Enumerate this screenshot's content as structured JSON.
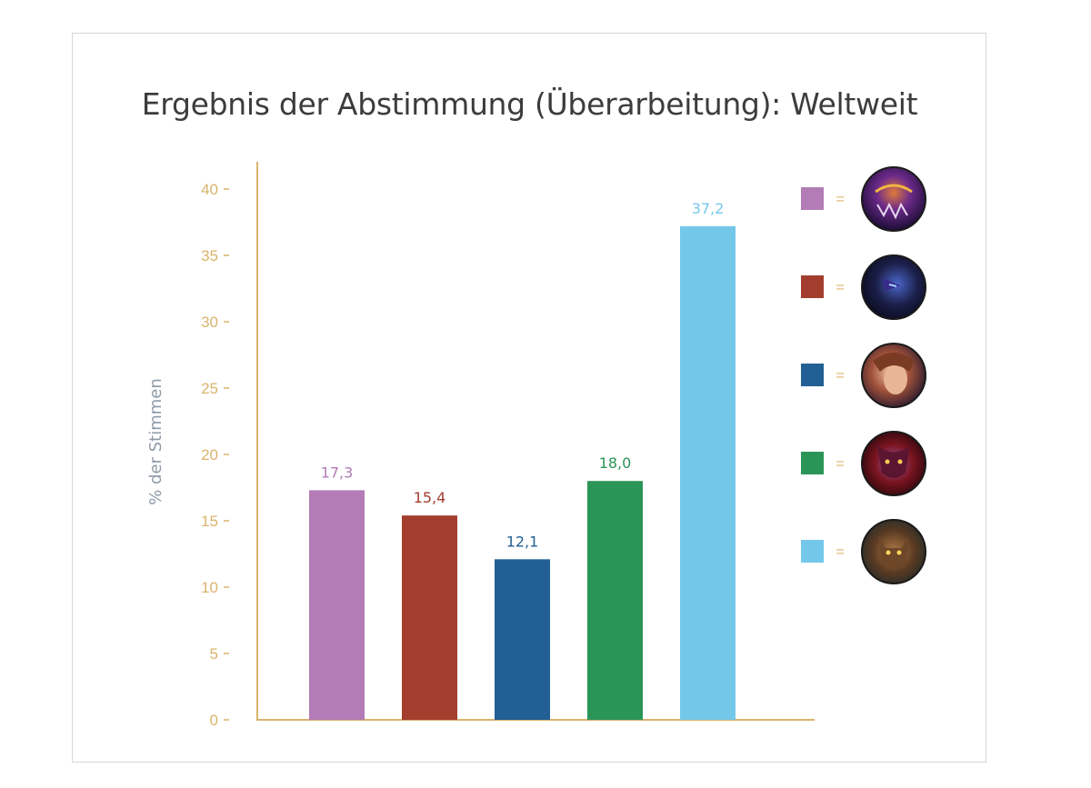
{
  "chart_data": {
    "type": "bar",
    "title": "Ergebnis der Abstimmung (Überarbeitung): Weltweit",
    "ylabel": "% der Stimmen",
    "xlabel": "",
    "ylim": [
      0,
      42
    ],
    "yticks": [
      0,
      5,
      10,
      15,
      20,
      25,
      30,
      35,
      40
    ],
    "ytick_labels": [
      "0",
      "5",
      "10",
      "15",
      "20",
      "25",
      "30",
      "35",
      "40"
    ],
    "grid": false,
    "legend": "right",
    "categories": [
      "",
      "",
      "",
      "",
      ""
    ],
    "values": [
      17.3,
      15.4,
      12.1,
      18.0,
      37.2
    ],
    "value_labels": [
      "17,3",
      "15,4",
      "12,1",
      "18,0",
      "37,2"
    ],
    "colors": [
      "#b37cb6",
      "#a33e2f",
      "#215f94",
      "#2b9558",
      "#73c8ea"
    ],
    "legend_entries": [
      {
        "marker_color": "#b37cb6",
        "symbol": "=",
        "icon": "champion-portrait-purple-monster-icon"
      },
      {
        "marker_color": "#a33e2f",
        "symbol": "=",
        "icon": "champion-portrait-dark-armored-icon"
      },
      {
        "marker_color": "#215f94",
        "symbol": "=",
        "icon": "champion-portrait-warrior-woman-icon"
      },
      {
        "marker_color": "#2b9558",
        "symbol": "=",
        "icon": "champion-portrait-red-demon-icon"
      },
      {
        "marker_color": "#73c8ea",
        "symbol": "=",
        "icon": "champion-portrait-werewolf-icon"
      }
    ],
    "axis_color": "#d9b36b"
  }
}
